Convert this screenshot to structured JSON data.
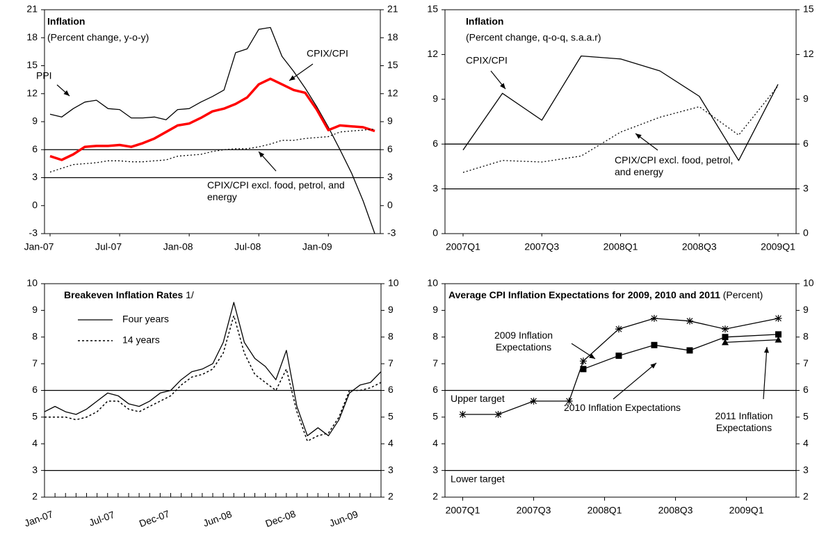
{
  "chart_data": [
    {
      "type": "line",
      "title": "Inflation",
      "subtitle": "(Percent change, y-o-y)",
      "categories": [
        "Jan-07",
        null,
        null,
        null,
        null,
        null,
        "Jul-07",
        null,
        null,
        null,
        null,
        null,
        "Jan-08",
        null,
        null,
        null,
        null,
        null,
        "Jul-08",
        null,
        null,
        null,
        null,
        null,
        "Jan-09",
        null,
        null,
        null,
        null
      ],
      "series": [
        {
          "name": "PPI",
          "color": "#000000",
          "line_style": "solid",
          "values": [
            9.8,
            9.5,
            10.4,
            11.1,
            11.3,
            10.4,
            10.3,
            9.4,
            9.4,
            9.5,
            9.2,
            10.3,
            10.4,
            11.1,
            11.7,
            12.4,
            16.4,
            16.8,
            18.9,
            19.1,
            16.0,
            14.4,
            12.6,
            10.6,
            8.4,
            6.0,
            3.5,
            0.5,
            -3.0
          ]
        },
        {
          "name": "CPIX/CPI",
          "color": "#ff0000",
          "line_style": "bold",
          "values": [
            5.3,
            4.9,
            5.5,
            6.3,
            6.4,
            6.4,
            6.5,
            6.3,
            6.7,
            7.2,
            7.9,
            8.6,
            8.8,
            9.4,
            10.1,
            10.4,
            10.9,
            11.6,
            13.0,
            13.6,
            13.0,
            12.4,
            12.1,
            10.3,
            8.1,
            8.6,
            8.5,
            8.4,
            8.0
          ]
        },
        {
          "name": "CPIX/CPI excl. food, petrol, and energy",
          "color": "#000000",
          "line_style": "dotted",
          "values": [
            3.6,
            4.0,
            4.4,
            4.5,
            4.6,
            4.8,
            4.8,
            4.7,
            4.7,
            4.8,
            4.9,
            5.3,
            5.4,
            5.5,
            5.8,
            6.0,
            6.1,
            6.1,
            6.3,
            6.6,
            7.0,
            7.0,
            7.2,
            7.3,
            7.4,
            7.9,
            8.0,
            8.1,
            8.2
          ]
        }
      ],
      "ylim": [
        -3,
        21
      ],
      "yticks": [
        -3,
        0,
        3,
        6,
        9,
        12,
        15,
        18,
        21
      ],
      "y2lim": [
        -3,
        21
      ],
      "y2ticks": [
        -3,
        0,
        3,
        6,
        9,
        12,
        15,
        18,
        21
      ],
      "reference_lines": [
        6,
        3
      ]
    },
    {
      "type": "line",
      "title": "Inflation",
      "subtitle": "(Percent change, q-o-q, s.a.a.r)",
      "categories": [
        "2007Q1",
        null,
        "2007Q3",
        null,
        "2008Q1",
        null,
        "2008Q3",
        null,
        "2009Q1"
      ],
      "series": [
        {
          "name": "CPIX/CPI",
          "color": "#000000",
          "line_style": "solid",
          "values": [
            5.6,
            9.4,
            7.6,
            11.9,
            11.7,
            10.9,
            9.2,
            4.9,
            10.0
          ]
        },
        {
          "name": "CPIX/CPI excl. food, petrol, and energy",
          "color": "#000000",
          "line_style": "dotted",
          "values": [
            4.1,
            4.9,
            4.8,
            5.2,
            6.8,
            7.8,
            8.5,
            6.6,
            9.9
          ]
        }
      ],
      "ylim": [
        0,
        15
      ],
      "yticks": [
        0,
        3,
        6,
        9,
        12,
        15
      ],
      "y2lim": [
        0,
        15
      ],
      "y2ticks": [
        0,
        3,
        6,
        9,
        12,
        15
      ],
      "reference_lines": [
        6,
        3
      ]
    },
    {
      "type": "line",
      "title": "Breakeven Inflation Rates",
      "title_note": "1/",
      "categories": [
        "Jan-07",
        null,
        null,
        null,
        null,
        null,
        "Jul-07",
        null,
        null,
        null,
        null,
        "Dec-07",
        null,
        null,
        null,
        null,
        null,
        "Jun-08",
        null,
        null,
        null,
        null,
        null,
        "Dec-08",
        null,
        null,
        null,
        null,
        null,
        "Jun-09",
        null,
        null,
        null
      ],
      "series": [
        {
          "name": "Four years",
          "color": "#000000",
          "line_style": "solid",
          "values": [
            5.2,
            5.4,
            5.2,
            5.1,
            5.3,
            5.6,
            5.9,
            5.8,
            5.5,
            5.4,
            5.6,
            5.9,
            6.0,
            6.4,
            6.7,
            6.8,
            7.0,
            7.8,
            9.3,
            7.8,
            7.2,
            6.9,
            6.4,
            7.5,
            5.4,
            4.3,
            4.6,
            4.3,
            4.9,
            5.9,
            6.2,
            6.3,
            6.7
          ]
        },
        {
          "name": "14 years",
          "color": "#000000",
          "line_style": "dashed",
          "values": [
            5.0,
            5.0,
            5.0,
            4.9,
            5.0,
            5.2,
            5.6,
            5.6,
            5.3,
            5.2,
            5.4,
            5.6,
            5.8,
            6.2,
            6.5,
            6.6,
            6.8,
            7.4,
            8.8,
            7.4,
            6.6,
            6.3,
            6.0,
            6.8,
            5.2,
            4.1,
            4.3,
            4.4,
            5.0,
            6.0,
            6.0,
            6.1,
            6.3
          ]
        }
      ],
      "ylim": [
        2,
        10
      ],
      "yticks": [
        2,
        3,
        4,
        5,
        6,
        7,
        8,
        9,
        10
      ],
      "y2lim": [
        2,
        10
      ],
      "y2ticks": [
        2,
        3,
        4,
        5,
        6,
        7,
        8,
        9,
        10
      ],
      "reference_lines": [
        6,
        3
      ],
      "legend": "top-left"
    },
    {
      "type": "line-marker",
      "title": "Average CPI Inflation Expectations for 2009, 2010 and 2011",
      "subtitle": "(Percent)",
      "x": [
        0,
        1,
        2,
        3,
        3.4,
        4.4,
        5.4,
        6.4,
        7.4,
        8.9
      ],
      "xlim": [
        -0.5,
        9.4
      ],
      "xticks": [
        {
          "value": 0,
          "label": "2007Q1"
        },
        {
          "value": 2,
          "label": "2007Q3"
        },
        {
          "value": 4,
          "label": "2008Q1"
        },
        {
          "value": 6,
          "label": "2008Q3"
        },
        {
          "value": 8,
          "label": "2009Q1"
        }
      ],
      "series": [
        {
          "name": "2009 Inflation Expectations",
          "color": "#000000",
          "marker": "star",
          "values": [
            5.1,
            5.1,
            5.6,
            5.6,
            7.1,
            8.3,
            8.7,
            8.6,
            8.3,
            8.7
          ]
        },
        {
          "name": "2010 Inflation Expectations",
          "color": "#000000",
          "marker": "square",
          "values": [
            null,
            null,
            null,
            null,
            6.8,
            7.3,
            7.7,
            7.5,
            8.0,
            8.1
          ]
        },
        {
          "name": "2011 Inflation Expectations",
          "color": "#000000",
          "marker": "triangle",
          "values": [
            null,
            null,
            null,
            null,
            null,
            null,
            null,
            null,
            7.8,
            7.9
          ]
        }
      ],
      "ylim": [
        2,
        10
      ],
      "yticks": [
        2,
        3,
        4,
        5,
        6,
        7,
        8,
        9,
        10
      ],
      "y2lim": [
        2,
        10
      ],
      "y2ticks": [
        2,
        3,
        4,
        5,
        6,
        7,
        8,
        9,
        10
      ],
      "reference_lines": [
        {
          "value": 6,
          "label": "Upper target"
        },
        {
          "value": 3,
          "label": "Lower target"
        }
      ]
    }
  ]
}
